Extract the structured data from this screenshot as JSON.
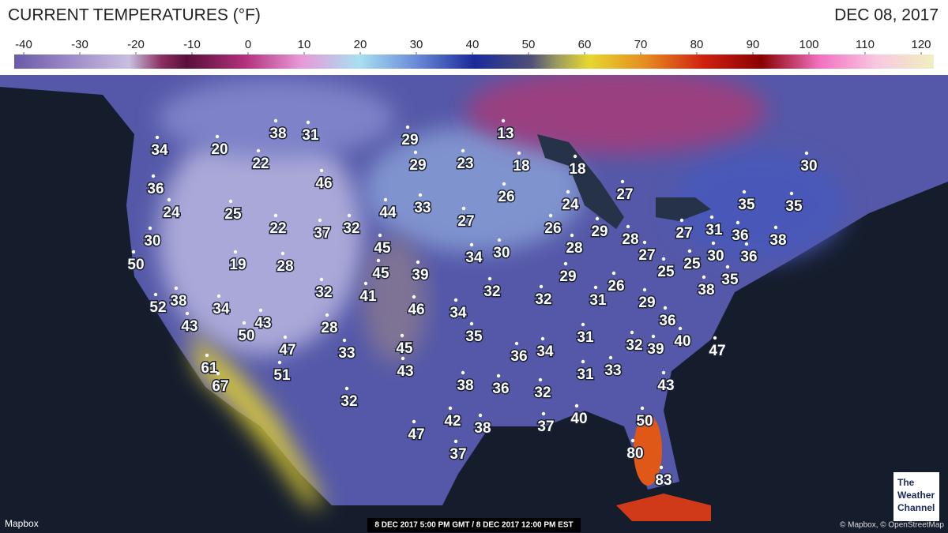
{
  "header": {
    "title": "CURRENT TEMPERATURES (°F)",
    "date": "DEC 08, 2017"
  },
  "scale": {
    "ticks": [
      -40,
      -30,
      -20,
      -10,
      0,
      10,
      20,
      30,
      40,
      50,
      60,
      70,
      80,
      90,
      100,
      110,
      120
    ]
  },
  "temperatures": [
    34,
    20,
    38,
    31,
    22,
    29,
    13,
    29,
    23,
    18,
    18,
    30,
    36,
    46,
    26,
    27,
    24,
    25,
    44,
    33,
    27,
    24,
    35,
    35,
    30,
    22,
    37,
    32,
    26,
    29,
    28,
    27,
    31,
    36,
    38,
    50,
    19,
    28,
    45,
    34,
    30,
    28,
    27,
    25,
    25,
    30,
    36,
    45,
    39,
    29,
    26,
    35,
    41,
    32,
    32,
    32,
    31,
    29,
    38,
    52,
    38,
    34,
    46,
    34,
    36,
    43,
    43,
    28,
    35,
    31,
    40,
    50,
    47,
    33,
    45,
    36,
    34,
    32,
    39,
    47,
    61,
    51,
    43,
    31,
    33,
    43,
    67,
    38,
    36,
    32,
    32,
    42,
    38,
    37,
    40,
    50,
    47,
    80,
    37,
    83
  ],
  "footer": {
    "source": "Mapbox",
    "timestamp": "8 DEC 2017 5:00 PM GMT / 8 DEC 2017 12:00 PM EST",
    "attribution": "© Mapbox, © OpenStreetMap"
  },
  "logo": [
    "The",
    "Weather",
    "Channel"
  ]
}
